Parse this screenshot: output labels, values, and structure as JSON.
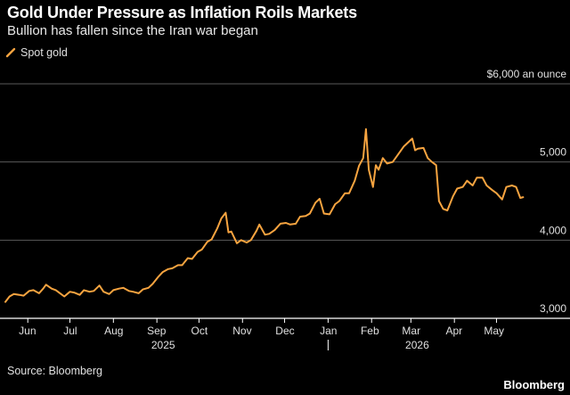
{
  "header": {
    "title": "Gold Under Pressure as Inflation Roils Markets",
    "subtitle": "Bullion has fallen since the Iran war began"
  },
  "legend": {
    "label": "Spot gold",
    "color": "#f7a440"
  },
  "footer": {
    "source": "Source: Bloomberg",
    "brand": "Bloomberg"
  },
  "colors": {
    "background": "#000000",
    "line": "#f7a440",
    "grid": "#5a5a5a",
    "axis": "#ffffff"
  },
  "chart_data": {
    "type": "line",
    "title": "Gold Under Pressure as Inflation Roils Markets",
    "subtitle": "Bullion has fallen since the Iran war began",
    "xlabel": "",
    "ylabel": "",
    "y_unit_label": "$6,000 an ounce",
    "ylim": [
      3000,
      6000
    ],
    "y_ticks": [
      3000,
      4000,
      5000,
      6000
    ],
    "y_tick_labels": [
      "3,000",
      "4,000",
      "5,000",
      "$6,000 an ounce"
    ],
    "x_months": [
      {
        "label": "Jun",
        "date": "2025-06-01"
      },
      {
        "label": "Jul",
        "date": "2025-07-01"
      },
      {
        "label": "Aug",
        "date": "2025-08-01"
      },
      {
        "label": "Sep",
        "date": "2025-09-01"
      },
      {
        "label": "Oct",
        "date": "2025-10-01"
      },
      {
        "label": "Nov",
        "date": "2025-11-01"
      },
      {
        "label": "Dec",
        "date": "2025-12-01"
      },
      {
        "label": "Jan",
        "date": "2026-01-01"
      },
      {
        "label": "Feb",
        "date": "2026-02-01"
      },
      {
        "label": "Mar",
        "date": "2026-03-01"
      },
      {
        "label": "Apr",
        "date": "2026-04-01"
      },
      {
        "label": "May",
        "date": "2026-05-01"
      }
    ],
    "x_years": [
      {
        "label": "2025",
        "date": "2025-09-15"
      },
      {
        "label": "2026",
        "date": "2026-03-15"
      }
    ],
    "year_divider_date": "2026-01-01",
    "grid": "horizontal",
    "legend_position": "top-left",
    "series": [
      {
        "name": "Spot gold",
        "points": [
          [
            "2025-05-16",
            3210
          ],
          [
            "2025-05-19",
            3280
          ],
          [
            "2025-05-22",
            3310
          ],
          [
            "2025-05-26",
            3300
          ],
          [
            "2025-05-29",
            3290
          ],
          [
            "2025-06-02",
            3350
          ],
          [
            "2025-06-05",
            3360
          ],
          [
            "2025-06-09",
            3320
          ],
          [
            "2025-06-12",
            3380
          ],
          [
            "2025-06-14",
            3430
          ],
          [
            "2025-06-18",
            3380
          ],
          [
            "2025-06-21",
            3360
          ],
          [
            "2025-06-24",
            3320
          ],
          [
            "2025-06-27",
            3280
          ],
          [
            "2025-07-01",
            3340
          ],
          [
            "2025-07-04",
            3330
          ],
          [
            "2025-07-08",
            3300
          ],
          [
            "2025-07-11",
            3360
          ],
          [
            "2025-07-15",
            3340
          ],
          [
            "2025-07-18",
            3350
          ],
          [
            "2025-07-22",
            3420
          ],
          [
            "2025-07-25",
            3340
          ],
          [
            "2025-07-29",
            3310
          ],
          [
            "2025-08-01",
            3360
          ],
          [
            "2025-08-05",
            3380
          ],
          [
            "2025-08-08",
            3390
          ],
          [
            "2025-08-12",
            3350
          ],
          [
            "2025-08-15",
            3340
          ],
          [
            "2025-08-19",
            3320
          ],
          [
            "2025-08-22",
            3370
          ],
          [
            "2025-08-26",
            3390
          ],
          [
            "2025-08-29",
            3440
          ],
          [
            "2025-09-02",
            3530
          ],
          [
            "2025-09-05",
            3590
          ],
          [
            "2025-09-09",
            3630
          ],
          [
            "2025-09-12",
            3640
          ],
          [
            "2025-09-16",
            3680
          ],
          [
            "2025-09-19",
            3680
          ],
          [
            "2025-09-23",
            3770
          ],
          [
            "2025-09-26",
            3760
          ],
          [
            "2025-09-30",
            3850
          ],
          [
            "2025-10-03",
            3880
          ],
          [
            "2025-10-07",
            3980
          ],
          [
            "2025-10-10",
            4010
          ],
          [
            "2025-10-14",
            4150
          ],
          [
            "2025-10-17",
            4280
          ],
          [
            "2025-10-20",
            4350
          ],
          [
            "2025-10-22",
            4100
          ],
          [
            "2025-10-24",
            4110
          ],
          [
            "2025-10-28",
            3960
          ],
          [
            "2025-10-31",
            4000
          ],
          [
            "2025-11-04",
            3970
          ],
          [
            "2025-11-07",
            4000
          ],
          [
            "2025-11-11",
            4120
          ],
          [
            "2025-11-13",
            4200
          ],
          [
            "2025-11-17",
            4070
          ],
          [
            "2025-11-20",
            4080
          ],
          [
            "2025-11-24",
            4130
          ],
          [
            "2025-11-28",
            4210
          ],
          [
            "2025-12-02",
            4220
          ],
          [
            "2025-12-05",
            4200
          ],
          [
            "2025-12-09",
            4210
          ],
          [
            "2025-12-12",
            4300
          ],
          [
            "2025-12-16",
            4310
          ],
          [
            "2025-12-19",
            4340
          ],
          [
            "2025-12-23",
            4480
          ],
          [
            "2025-12-26",
            4530
          ],
          [
            "2025-12-29",
            4340
          ],
          [
            "2026-01-02",
            4330
          ],
          [
            "2026-01-06",
            4460
          ],
          [
            "2026-01-09",
            4500
          ],
          [
            "2026-01-13",
            4600
          ],
          [
            "2026-01-16",
            4600
          ],
          [
            "2026-01-20",
            4760
          ],
          [
            "2026-01-23",
            4950
          ],
          [
            "2026-01-26",
            5050
          ],
          [
            "2026-01-28",
            5420
          ],
          [
            "2026-01-30",
            4900
          ],
          [
            "2026-02-02",
            4680
          ],
          [
            "2026-02-04",
            4960
          ],
          [
            "2026-02-06",
            4900
          ],
          [
            "2026-02-09",
            5050
          ],
          [
            "2026-02-12",
            4980
          ],
          [
            "2026-02-16",
            5000
          ],
          [
            "2026-02-20",
            5100
          ],
          [
            "2026-02-24",
            5200
          ],
          [
            "2026-02-27",
            5250
          ],
          [
            "2026-03-02",
            5300
          ],
          [
            "2026-03-04",
            5150
          ],
          [
            "2026-03-06",
            5170
          ],
          [
            "2026-03-10",
            5180
          ],
          [
            "2026-03-13",
            5050
          ],
          [
            "2026-03-16",
            5000
          ],
          [
            "2026-03-19",
            4960
          ],
          [
            "2026-03-21",
            4500
          ],
          [
            "2026-03-24",
            4400
          ],
          [
            "2026-03-27",
            4380
          ],
          [
            "2026-03-31",
            4560
          ],
          [
            "2026-04-03",
            4660
          ],
          [
            "2026-04-07",
            4680
          ],
          [
            "2026-04-10",
            4760
          ],
          [
            "2026-04-14",
            4700
          ],
          [
            "2026-04-17",
            4800
          ],
          [
            "2026-04-21",
            4800
          ],
          [
            "2026-04-24",
            4700
          ],
          [
            "2026-04-28",
            4640
          ],
          [
            "2026-05-01",
            4600
          ],
          [
            "2026-05-05",
            4520
          ],
          [
            "2026-05-08",
            4680
          ],
          [
            "2026-05-12",
            4700
          ],
          [
            "2026-05-15",
            4680
          ],
          [
            "2026-05-18",
            4540
          ],
          [
            "2026-05-20",
            4550
          ]
        ]
      }
    ]
  }
}
